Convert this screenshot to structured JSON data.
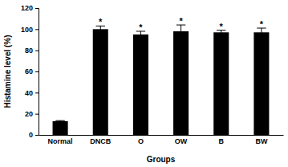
{
  "chart_data": {
    "type": "bar",
    "categories": [
      "Normal",
      "DNCB",
      "O",
      "OW",
      "B",
      "BW"
    ],
    "values": [
      13,
      100,
      95,
      98,
      97,
      97
    ],
    "errors": [
      0.5,
      3,
      3,
      6,
      2,
      4
    ],
    "color": "#000000",
    "x_label": "Groups",
    "y_label": "Histamine level (%)",
    "ylim": [
      0,
      120
    ],
    "yticks": [
      0,
      20,
      40,
      60,
      80,
      100,
      120
    ],
    "grid": false,
    "annotations": [
      {
        "text": "*",
        "category": "DNCB"
      },
      {
        "text": "*",
        "category": "O"
      },
      {
        "text": "*",
        "category": "OW"
      },
      {
        "text": "*",
        "category": "B"
      },
      {
        "text": "*",
        "category": "BW"
      }
    ]
  }
}
